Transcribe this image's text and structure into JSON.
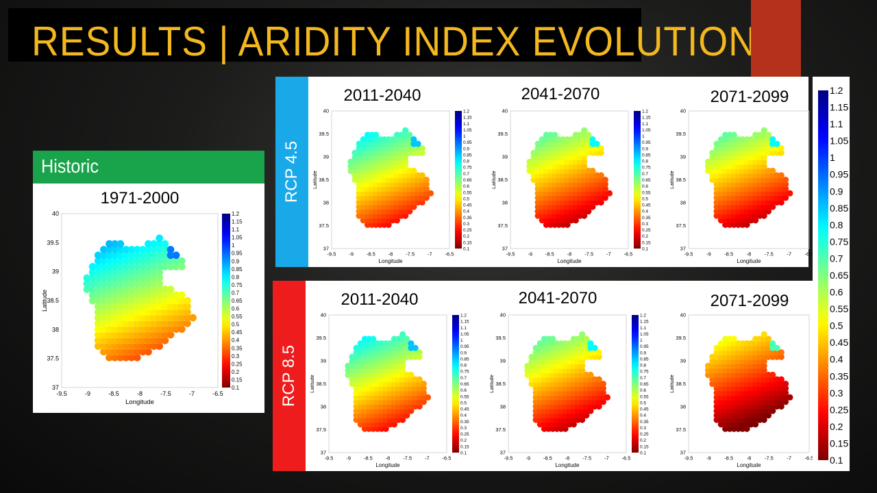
{
  "slide": {
    "title": "RESULTS | ARIDITY INDEX EVOLUTION",
    "historic_label": "Historic",
    "historic_period": "1971-2000",
    "rcp45_label": "RCP 4.5",
    "rcp85_label": "RCP 8.5",
    "periods": [
      "2011-2040",
      "2041-2070",
      "2071-2099"
    ]
  },
  "colors": {
    "title": "#f3b81f",
    "historic_header": "#19a34a",
    "rcp45": "#1aa9e8",
    "rcp85": "#ee1c1c",
    "accent": "#b5311b"
  },
  "colormap": "jet (reversed: red = 0.1, dark blue = 1.2)",
  "chart_data": [
    {
      "type": "scatter",
      "scenario": "Historic",
      "period": "1971-2000",
      "xlabel": "Longitude",
      "ylabel": "Latitude",
      "xlim": [
        -9.5,
        -6.5
      ],
      "ylim": [
        37,
        40
      ],
      "clim": [
        0.1,
        1.2
      ],
      "dominant_range": [
        0.3,
        0.7
      ]
    },
    {
      "type": "scatter",
      "scenario": "RCP 4.5",
      "period": "2011-2040",
      "xlabel": "Longitude",
      "ylabel": "Latitude",
      "xlim": [
        -9.5,
        -6.5
      ],
      "ylim": [
        37,
        40
      ],
      "clim": [
        0.1,
        1.2
      ],
      "dominant_range": [
        0.25,
        0.65
      ]
    },
    {
      "type": "scatter",
      "scenario": "RCP 4.5",
      "period": "2041-2070",
      "xlabel": "Longitude",
      "ylabel": "Latitude",
      "xlim": [
        -9.5,
        -6.5
      ],
      "ylim": [
        37,
        40
      ],
      "clim": [
        0.1,
        1.2
      ],
      "dominant_range": [
        0.2,
        0.6
      ]
    },
    {
      "type": "scatter",
      "scenario": "RCP 4.5",
      "period": "2071-2099",
      "xlabel": "Longitude",
      "ylabel": "Latitude",
      "xlim": [
        -9.5,
        -6.5
      ],
      "ylim": [
        37,
        40
      ],
      "clim": [
        0.1,
        1.2
      ],
      "dominant_range": [
        0.2,
        0.6
      ]
    },
    {
      "type": "scatter",
      "scenario": "RCP 8.5",
      "period": "2011-2040",
      "xlabel": "Longitude",
      "ylabel": "Latitude",
      "xlim": [
        -9.5,
        -6.5
      ],
      "ylim": [
        37,
        40
      ],
      "clim": [
        0.1,
        1.2
      ],
      "dominant_range": [
        0.25,
        0.65
      ]
    },
    {
      "type": "scatter",
      "scenario": "RCP 8.5",
      "period": "2041-2070",
      "xlabel": "Longitude",
      "ylabel": "Latitude",
      "xlim": [
        -9.5,
        -6.5
      ],
      "ylim": [
        37,
        40
      ],
      "clim": [
        0.1,
        1.2
      ],
      "dominant_range": [
        0.2,
        0.6
      ]
    },
    {
      "type": "scatter",
      "scenario": "RCP 8.5",
      "period": "2071-2099",
      "xlabel": "Longitude",
      "ylabel": "Latitude",
      "xlim": [
        -9.5,
        -6.5
      ],
      "ylim": [
        37,
        40
      ],
      "clim": [
        0.1,
        1.2
      ],
      "dominant_range": [
        0.15,
        0.5
      ]
    }
  ],
  "axes": {
    "xticks": [
      "-9.5",
      "-9",
      "-8.5",
      "-8",
      "-7.5",
      "-7",
      "-6.5"
    ],
    "yticks": [
      "40",
      "39.5",
      "39",
      "38.5",
      "38",
      "37.5",
      "37"
    ],
    "xlabel": "Longitude",
    "ylabel": "Latitude"
  },
  "colorbar_ticks": [
    "1.2",
    "1.15",
    "1.1",
    "1.05",
    "1",
    "0.95",
    "0.9",
    "0.85",
    "0.8",
    "0.75",
    "0.7",
    "0.65",
    "0.6",
    "0.55",
    "0.5",
    "0.45",
    "0.4",
    "0.35",
    "0.3",
    "0.25",
    "0.2",
    "0.15",
    "0.1"
  ]
}
